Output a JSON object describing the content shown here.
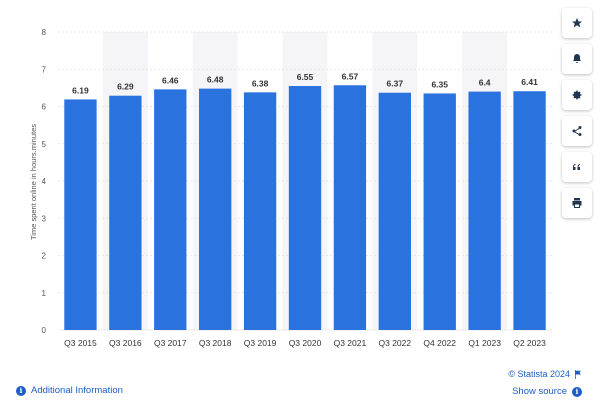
{
  "chart_data": {
    "type": "bar",
    "categories": [
      "Q3 2015",
      "Q3 2016",
      "Q3 2017",
      "Q3 2018",
      "Q3 2019",
      "Q3 2020",
      "Q3 2021",
      "Q3 2022",
      "Q4 2022",
      "Q1 2023",
      "Q2 2023"
    ],
    "values": [
      6.19,
      6.29,
      6.46,
      6.48,
      6.38,
      6.55,
      6.57,
      6.37,
      6.35,
      6.4,
      6.41
    ],
    "value_labels": [
      "6.19",
      "6.29",
      "6.46",
      "6.48",
      "6.38",
      "6.55",
      "6.57",
      "6.37",
      "6.35",
      "6.4",
      "6.41"
    ],
    "title": "",
    "xlabel": "",
    "ylabel": "Time spent online in hours.minutes",
    "ylim": [
      0,
      8
    ],
    "yticks": [
      0,
      1,
      2,
      3,
      4,
      5,
      6,
      7,
      8
    ],
    "grid": true,
    "bar_color": "#2a72de",
    "band_color": "#f5f5f7"
  },
  "toolbar": {
    "items": [
      {
        "name": "star-icon"
      },
      {
        "name": "bell-icon"
      },
      {
        "name": "gear-icon"
      },
      {
        "name": "share-icon"
      },
      {
        "name": "quote-icon"
      },
      {
        "name": "print-icon"
      }
    ]
  },
  "footer": {
    "additional_info": "Additional Information",
    "copyright": "© Statista 2024",
    "show_source": "Show source"
  }
}
